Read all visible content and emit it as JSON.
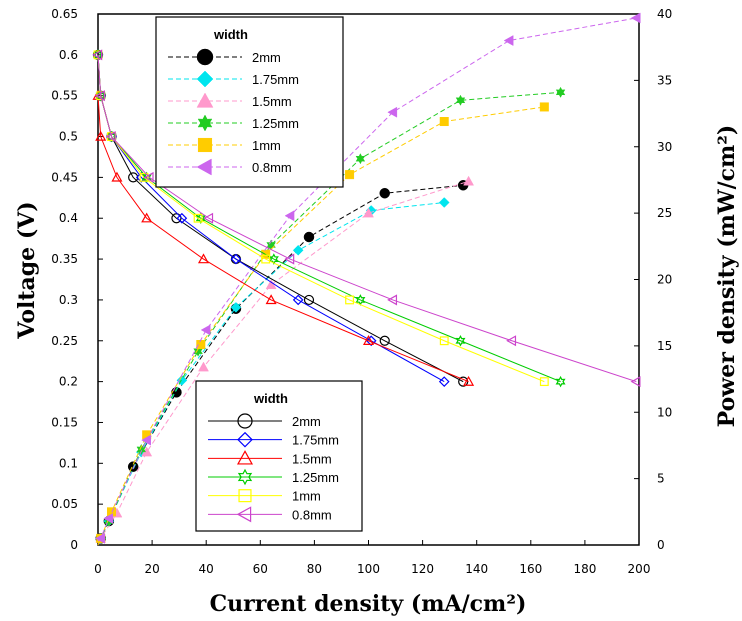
{
  "chart_data": {
    "type": "line",
    "xlabel": "Current density (mA/cm²)",
    "ylabel_left": "Voltage (V)",
    "ylabel_right": "Power density (mW/cm²)",
    "xlim": [
      0,
      200
    ],
    "ylim_left": [
      0,
      0.65
    ],
    "ylim_right": [
      0,
      40
    ],
    "x_ticks": [
      "0",
      "20",
      "40",
      "60",
      "80",
      "100",
      "120",
      "140",
      "160",
      "180",
      "200"
    ],
    "y_left_ticks": [
      "0",
      "0.05",
      "0.1",
      "0.15",
      "0.2",
      "0.25",
      "0.3",
      "0.35",
      "0.4",
      "0.45",
      "0.5",
      "0.55",
      "0.6",
      "0.65"
    ],
    "y_right_ticks": [
      "0",
      "5",
      "10",
      "15",
      "20",
      "25",
      "30",
      "35",
      "40"
    ],
    "grid": false,
    "voltage_legend": {
      "title": "width",
      "placement": "bottom-center"
    },
    "power_legend": {
      "title": "width",
      "placement": "top-left"
    },
    "voltage_series": [
      {
        "name": "2mm",
        "color": "#000000",
        "marker": "circle-open",
        "line": "solid",
        "x": [
          0,
          1,
          5,
          13,
          29,
          51,
          78,
          106,
          135
        ],
        "y": [
          0.6,
          0.55,
          0.5,
          0.45,
          0.4,
          0.35,
          0.3,
          0.25,
          0.2
        ]
      },
      {
        "name": "1.75mm",
        "color": "#0000ff",
        "marker": "diamond-open",
        "line": "solid",
        "x": [
          0,
          1,
          5,
          16,
          31,
          51,
          74,
          101,
          128
        ],
        "y": [
          0.6,
          0.55,
          0.5,
          0.45,
          0.4,
          0.35,
          0.3,
          0.25,
          0.2
        ]
      },
      {
        "name": "1.5mm",
        "color": "#ff0000",
        "marker": "triangle-open",
        "line": "solid",
        "x": [
          0,
          1,
          7,
          18,
          39,
          64,
          100,
          137
        ],
        "y": [
          0.55,
          0.5,
          0.45,
          0.4,
          0.35,
          0.3,
          0.25,
          0.2
        ]
      },
      {
        "name": "1.25mm",
        "color": "#00cc00",
        "marker": "star-open",
        "line": "solid",
        "x": [
          0,
          1,
          5,
          18,
          38,
          65,
          97,
          134,
          171
        ],
        "y": [
          0.6,
          0.55,
          0.5,
          0.45,
          0.4,
          0.35,
          0.3,
          0.25,
          0.2
        ]
      },
      {
        "name": "1mm",
        "color": "#ffff00",
        "marker": "square-open",
        "line": "solid",
        "x": [
          0,
          1,
          5,
          17,
          37,
          62,
          93,
          128,
          165
        ],
        "y": [
          0.6,
          0.55,
          0.5,
          0.45,
          0.4,
          0.35,
          0.3,
          0.25,
          0.2
        ]
      },
      {
        "name": "0.8mm",
        "color": "#cc44cc",
        "marker": "tri-left-open",
        "line": "solid",
        "x": [
          0,
          1,
          5,
          19,
          41,
          71,
          109,
          153,
          199
        ],
        "y": [
          0.6,
          0.55,
          0.5,
          0.45,
          0.4,
          0.35,
          0.3,
          0.25,
          0.2
        ]
      }
    ],
    "power_series": [
      {
        "name": "2mm",
        "color": "#000000",
        "marker": "circle-filled",
        "line": "dashed",
        "x": [
          0,
          1,
          4,
          13,
          29,
          51,
          78,
          106,
          135
        ],
        "y": [
          0.4,
          0.5,
          1.8,
          5.9,
          11.5,
          17.8,
          23.2,
          26.5,
          27.1
        ]
      },
      {
        "name": "1.75mm",
        "color": "#00e5ee",
        "marker": "diamond-filled",
        "line": "dashed",
        "x": [
          0,
          1,
          4,
          16,
          31,
          51,
          74,
          101,
          128
        ],
        "y": [
          0.4,
          0.5,
          1.8,
          7.0,
          12.4,
          17.9,
          22.2,
          25.2,
          25.8
        ]
      },
      {
        "name": "1.5mm",
        "color": "#ff99cc",
        "marker": "triangle-filled",
        "line": "dashed",
        "x": [
          0,
          1,
          7,
          18,
          39,
          64,
          100,
          137
        ],
        "y": [
          0.3,
          0.5,
          2.4,
          7.0,
          13.4,
          19.6,
          25.0,
          27.4
        ]
      },
      {
        "name": "1.25mm",
        "color": "#22cc22",
        "marker": "star-filled",
        "line": "dashed",
        "x": [
          0,
          1,
          4,
          16,
          37,
          64,
          97,
          134,
          171
        ],
        "y": [
          0.4,
          0.5,
          1.8,
          7.2,
          14.6,
          22.6,
          29.1,
          33.5,
          34.1
        ]
      },
      {
        "name": "1mm",
        "color": "#ffcc00",
        "marker": "square-filled",
        "line": "dashed",
        "x": [
          0,
          1,
          5,
          18,
          38,
          62,
          93,
          128,
          165
        ],
        "y": [
          0.0,
          0.5,
          2.5,
          8.3,
          15.1,
          21.9,
          27.9,
          31.9,
          33.0
        ]
      },
      {
        "name": "0.8mm",
        "color": "#cc66ee",
        "marker": "tri-left-filled",
        "line": "dashed",
        "x": [
          0,
          1,
          4,
          18,
          40,
          71,
          109,
          152,
          199
        ],
        "y": [
          0.3,
          0.5,
          2.0,
          7.9,
          16.2,
          24.8,
          32.6,
          38.0,
          39.7
        ]
      }
    ]
  }
}
